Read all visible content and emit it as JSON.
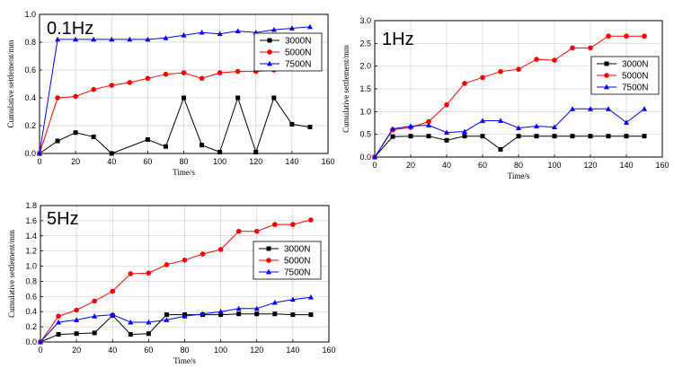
{
  "chart_data": [
    {
      "type": "line",
      "title": "0.1Hz",
      "xlabel": "Time/s",
      "ylabel": "Cumulative settlement/mm",
      "xlim": [
        0,
        160
      ],
      "ylim": [
        0,
        1.0
      ],
      "xticks": [
        "0",
        "20",
        "40",
        "60",
        "80",
        "100",
        "120",
        "140",
        "160"
      ],
      "yticks": [
        "0.0",
        "0.2",
        "0.4",
        "0.6",
        "0.8",
        "1.0"
      ],
      "grid": true,
      "legend_position": "top-right",
      "series": [
        {
          "name": "3000N",
          "color": "#000000",
          "marker": "square",
          "x": [
            0,
            10,
            20,
            30,
            40,
            60,
            70,
            80,
            90,
            100,
            110,
            120,
            130,
            140,
            150
          ],
          "y": [
            0,
            0.09,
            0.15,
            0.12,
            0.0,
            0.1,
            0.05,
            0.4,
            0.06,
            0.01,
            0.4,
            0.01,
            0.4,
            0.21,
            0.19
          ]
        },
        {
          "name": "5000N",
          "color": "#ff0000",
          "marker": "circle",
          "x": [
            0,
            10,
            20,
            30,
            40,
            50,
            60,
            70,
            80,
            90,
            100,
            110,
            120,
            130,
            140,
            150
          ],
          "y": [
            0,
            0.4,
            0.41,
            0.46,
            0.49,
            0.51,
            0.54,
            0.57,
            0.58,
            0.54,
            0.58,
            0.59,
            0.59,
            0.6,
            0.61,
            0.61
          ]
        },
        {
          "name": "7500N",
          "color": "#0000ff",
          "marker": "triangle",
          "x": [
            0,
            10,
            20,
            30,
            40,
            50,
            60,
            70,
            80,
            90,
            100,
            110,
            120,
            130,
            140,
            150
          ],
          "y": [
            0,
            0.82,
            0.82,
            0.82,
            0.82,
            0.82,
            0.82,
            0.83,
            0.85,
            0.87,
            0.86,
            0.88,
            0.87,
            0.89,
            0.9,
            0.91
          ]
        }
      ]
    },
    {
      "type": "line",
      "title": "1Hz",
      "xlabel": "Time/s",
      "ylabel": "Cumulative settlement/mm",
      "xlim": [
        0,
        160
      ],
      "ylim": [
        0,
        3.0
      ],
      "xticks": [
        "0",
        "20",
        "40",
        "60",
        "80",
        "100",
        "120",
        "140",
        "160"
      ],
      "yticks": [
        "0.0",
        "0.5",
        "1.0",
        "1.5",
        "2.0",
        "2.5",
        "3.0"
      ],
      "grid": true,
      "legend_position": "right",
      "series": [
        {
          "name": "3000N",
          "color": "#000000",
          "marker": "square",
          "x": [
            0,
            10,
            20,
            30,
            40,
            50,
            60,
            70,
            80,
            90,
            100,
            110,
            120,
            130,
            140,
            150
          ],
          "y": [
            0,
            0.45,
            0.46,
            0.46,
            0.37,
            0.46,
            0.46,
            0.17,
            0.46,
            0.46,
            0.46,
            0.46,
            0.46,
            0.46,
            0.46,
            0.46
          ]
        },
        {
          "name": "5000N",
          "color": "#ff0000",
          "marker": "circle",
          "x": [
            0,
            10,
            20,
            30,
            40,
            50,
            60,
            70,
            80,
            90,
            100,
            110,
            120,
            130,
            140,
            150
          ],
          "y": [
            0,
            0.6,
            0.65,
            0.78,
            1.15,
            1.62,
            1.75,
            1.88,
            1.93,
            2.15,
            2.13,
            2.4,
            2.4,
            2.66,
            2.66,
            2.66
          ]
        },
        {
          "name": "7500N",
          "color": "#0000ff",
          "marker": "triangle",
          "x": [
            0,
            10,
            20,
            30,
            40,
            50,
            60,
            70,
            80,
            90,
            100,
            110,
            120,
            130,
            140,
            150
          ],
          "y": [
            0,
            0.62,
            0.68,
            0.7,
            0.54,
            0.56,
            0.8,
            0.8,
            0.64,
            0.68,
            0.66,
            1.06,
            1.06,
            1.06,
            0.76,
            1.06
          ]
        }
      ]
    },
    {
      "type": "line",
      "title": "5Hz",
      "xlabel": "Time/s",
      "ylabel": "Cumulative settlement/mm",
      "xlim": [
        0,
        160
      ],
      "ylim": [
        0,
        1.8
      ],
      "xticks": [
        "0",
        "20",
        "40",
        "60",
        "80",
        "100",
        "120",
        "140",
        "160"
      ],
      "yticks": [
        "0.0",
        "0.2",
        "0.4",
        "0.6",
        "0.8",
        "1.0",
        "1.2",
        "1.4",
        "1.6",
        "1.8"
      ],
      "grid": true,
      "legend_position": "bottom-right",
      "series": [
        {
          "name": "3000N",
          "color": "#000000",
          "marker": "square",
          "x": [
            0,
            10,
            20,
            30,
            40,
            50,
            60,
            70,
            80,
            90,
            100,
            110,
            120,
            130,
            140,
            150
          ],
          "y": [
            0,
            0.1,
            0.11,
            0.12,
            0.35,
            0.1,
            0.11,
            0.36,
            0.36,
            0.36,
            0.36,
            0.37,
            0.37,
            0.37,
            0.36,
            0.36
          ]
        },
        {
          "name": "5000N",
          "color": "#ff0000",
          "marker": "circle",
          "x": [
            0,
            10,
            20,
            30,
            40,
            50,
            60,
            70,
            80,
            90,
            100,
            110,
            120,
            130,
            140,
            150
          ],
          "y": [
            0,
            0.34,
            0.42,
            0.54,
            0.67,
            0.9,
            0.91,
            1.02,
            1.08,
            1.16,
            1.22,
            1.46,
            1.46,
            1.55,
            1.55,
            1.61
          ]
        },
        {
          "name": "7500N",
          "color": "#0000ff",
          "marker": "triangle",
          "x": [
            0,
            10,
            20,
            30,
            40,
            50,
            60,
            70,
            80,
            90,
            100,
            110,
            120,
            130,
            140,
            150
          ],
          "y": [
            0,
            0.26,
            0.29,
            0.34,
            0.36,
            0.26,
            0.26,
            0.29,
            0.34,
            0.37,
            0.4,
            0.44,
            0.44,
            0.52,
            0.56,
            0.59
          ]
        }
      ]
    }
  ]
}
